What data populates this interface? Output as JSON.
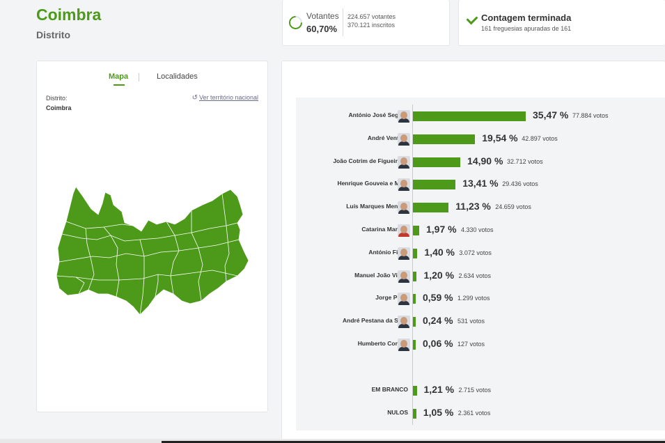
{
  "header": {
    "title": "Coimbra",
    "subtitle": "Distrito"
  },
  "turnout": {
    "label": "Votantes",
    "percent": "60,70%",
    "voters": "224.657 votantes",
    "registered": "370.121 inscritos"
  },
  "count": {
    "title": "Contagem terminada",
    "subtitle": "161 freguesias apuradas de 161"
  },
  "map_panel": {
    "tabs": [
      "Mapa",
      "Localidades"
    ],
    "district_label": "Distrito:",
    "district_value": "Coimbra",
    "national_link": "Ver território nacional",
    "map_color": "#4d9a1a"
  },
  "chart_data": {
    "type": "bar",
    "orientation": "horizontal",
    "bar_color": "#4d9a1a",
    "max_percent": 35.47,
    "candidates": [
      {
        "name": "António José Seguro",
        "percent": 35.47,
        "percent_label": "35,47 %",
        "votes_label": "77.884 votos"
      },
      {
        "name": "André Ventura",
        "percent": 19.54,
        "percent_label": "19,54 %",
        "votes_label": "42.897 votos"
      },
      {
        "name": "João Cotrim de Figueiredo",
        "percent": 14.9,
        "percent_label": "14,90 %",
        "votes_label": "32.712 votos"
      },
      {
        "name": "Henrique Gouveia e Melo",
        "percent": 13.41,
        "percent_label": "13,41 %",
        "votes_label": "29.436 votos"
      },
      {
        "name": "Luís Marques Mendes",
        "percent": 11.23,
        "percent_label": "11,23 %",
        "votes_label": "24.659 votos"
      },
      {
        "name": "Catarina Martins",
        "percent": 1.97,
        "percent_label": "1,97 %",
        "votes_label": "4.330 votos"
      },
      {
        "name": "António Filipe",
        "percent": 1.4,
        "percent_label": "1,40 %",
        "votes_label": "3.072 votos"
      },
      {
        "name": "Manuel João Vieira",
        "percent": 1.2,
        "percent_label": "1,20 %",
        "votes_label": "2.634 votos"
      },
      {
        "name": "Jorge Pinto",
        "percent": 0.59,
        "percent_label": "0,59 %",
        "votes_label": "1.299 votos"
      },
      {
        "name": "André Pestana da Silva",
        "percent": 0.24,
        "percent_label": "0,24 %",
        "votes_label": "531 votos"
      },
      {
        "name": "Humberto Correia",
        "percent": 0.06,
        "percent_label": "0,06 %",
        "votes_label": "127 votos"
      }
    ],
    "other": [
      {
        "name": "EM BRANCO",
        "percent": 1.21,
        "percent_label": "1,21 %",
        "votes_label": "2.715 votos"
      },
      {
        "name": "NULOS",
        "percent": 1.05,
        "percent_label": "1,05 %",
        "votes_label": "2.361 votos"
      }
    ]
  }
}
